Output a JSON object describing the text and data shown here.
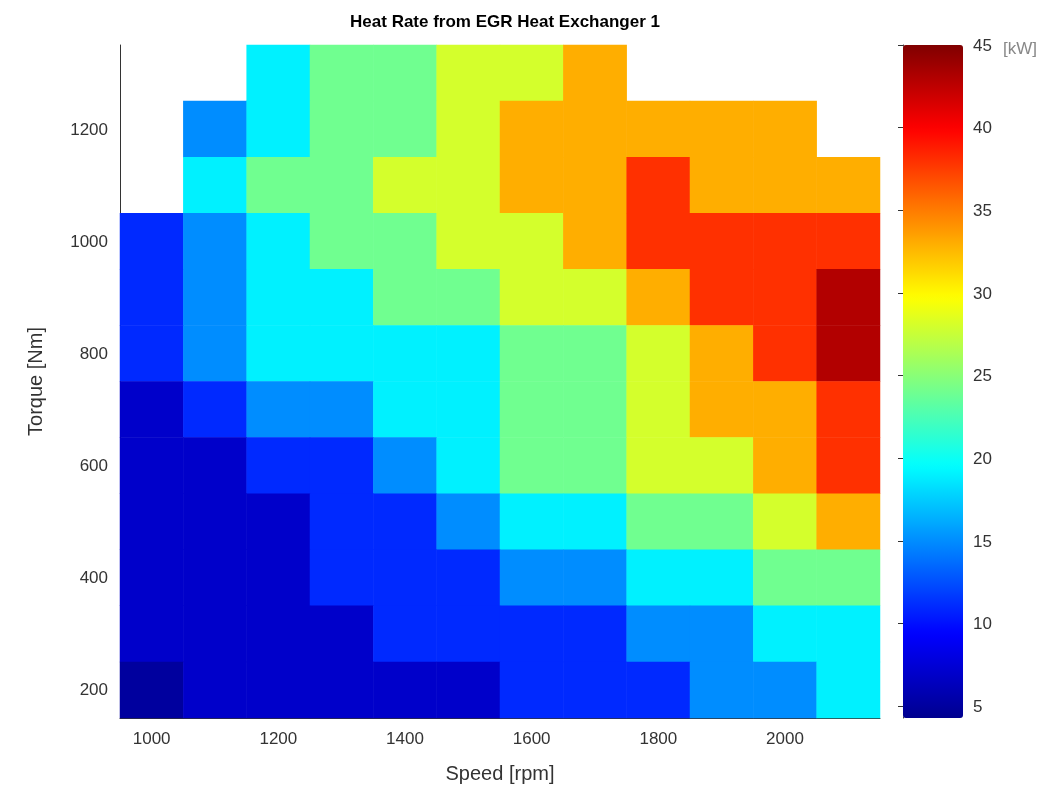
{
  "chart_data": {
    "type": "heatmap",
    "title": "Heat Rate from EGR Heat Exchanger 1",
    "xlabel": "Speed [rpm]",
    "ylabel": "Torque [Nm]",
    "clabel": "[kW]",
    "categories": [
      "1000",
      null,
      "1200",
      null,
      "1400",
      null,
      "1600",
      null,
      "1800",
      null,
      "2000",
      null
    ],
    "y_categories": [
      null,
      "1200",
      null,
      "1000",
      null,
      "800",
      null,
      "600",
      null,
      "400",
      null,
      "200"
    ],
    "cells": [
      [
        null,
        null,
        19,
        24,
        24,
        28,
        28,
        33,
        null,
        null,
        null,
        null
      ],
      [
        null,
        15,
        19,
        24,
        24,
        28,
        33,
        33,
        33,
        33,
        33,
        null
      ],
      [
        null,
        19,
        24,
        24,
        28,
        28,
        33,
        33,
        38,
        33,
        33,
        33
      ],
      [
        11,
        15,
        19,
        24,
        24,
        28,
        28,
        33,
        38,
        38,
        38,
        38
      ],
      [
        11,
        15,
        19,
        19,
        24,
        24,
        28,
        28,
        33,
        38,
        38,
        43
      ],
      [
        11,
        15,
        19,
        19,
        19,
        19,
        24,
        24,
        28,
        33,
        38,
        43
      ],
      [
        7,
        11,
        15,
        15,
        19,
        19,
        24,
        24,
        28,
        33,
        33,
        38
      ],
      [
        7,
        7,
        11,
        11,
        15,
        19,
        24,
        24,
        28,
        28,
        33,
        38
      ],
      [
        7,
        7,
        7,
        11,
        11,
        15,
        19,
        19,
        24,
        24,
        28,
        33
      ],
      [
        7,
        7,
        7,
        11,
        11,
        11,
        15,
        15,
        19,
        19,
        24,
        24
      ],
      [
        7,
        7,
        7,
        7,
        11,
        11,
        11,
        11,
        15,
        15,
        19,
        19
      ],
      [
        5,
        7,
        7,
        7,
        7,
        7,
        11,
        11,
        11,
        15,
        15,
        19
      ]
    ],
    "clim": [
      4.3,
      45
    ],
    "cticks": [
      5,
      10,
      15,
      20,
      25,
      30,
      35,
      40,
      45
    ],
    "grid": false
  }
}
